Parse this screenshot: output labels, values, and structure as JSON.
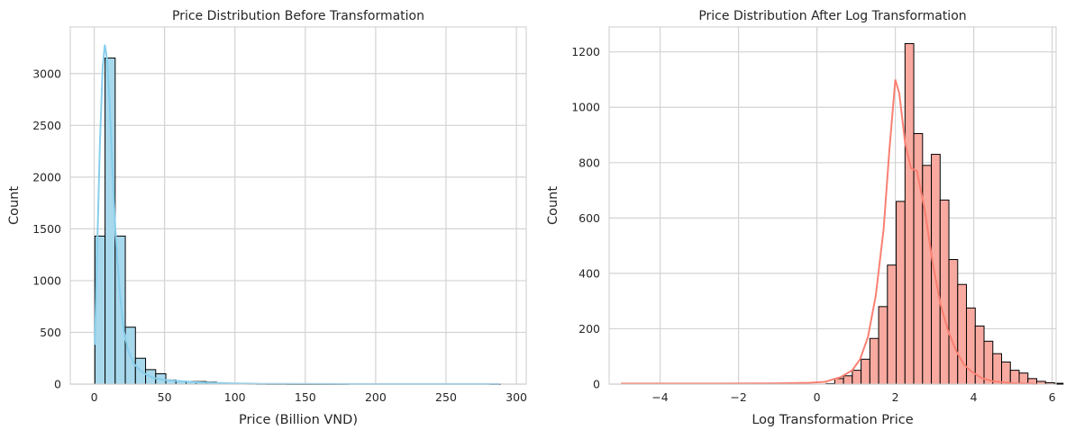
{
  "colors": {
    "left_fill": "#a8d8ec",
    "left_kde": "#87ceeb",
    "right_fill": "#f9aaa0",
    "right_kde": "#fa8072",
    "edge": "#000000",
    "grid": "#d3d3d3"
  },
  "chart_data": [
    {
      "type": "histogram",
      "title": "Price Distribution Before Transformation",
      "xlabel": "Price (Billion VND)",
      "ylabel": "Count",
      "xlim": [
        -17,
        307
      ],
      "ylim": [
        0,
        3450
      ],
      "xticks": [
        0,
        50,
        100,
        150,
        200,
        250,
        300
      ],
      "xtick_labels": [
        "0",
        "50",
        "100",
        "150",
        "200",
        "250",
        "300"
      ],
      "yticks": [
        0,
        500,
        1000,
        1500,
        2000,
        2500,
        3000
      ],
      "ytick_labels": [
        "0",
        "500",
        "1000",
        "1500",
        "2000",
        "2500",
        "3000"
      ],
      "grid": true,
      "kde": true,
      "bins": {
        "start": 0.5,
        "width": 7.2,
        "counts": [
          1430,
          3150,
          1430,
          550,
          250,
          140,
          100,
          40,
          30,
          25,
          25,
          20,
          10,
          8,
          6,
          4,
          3,
          2,
          2,
          1,
          1,
          1,
          1,
          1,
          1,
          0,
          0,
          0,
          0,
          0,
          0,
          0,
          0,
          0,
          0,
          0,
          0,
          0,
          0,
          1
        ]
      },
      "kde_points": [
        [
          0.5,
          380
        ],
        [
          2,
          1250
        ],
        [
          4,
          2300
        ],
        [
          6,
          3050
        ],
        [
          7.5,
          3280
        ],
        [
          9,
          3150
        ],
        [
          11,
          2700
        ],
        [
          13,
          2050
        ],
        [
          15,
          1500
        ],
        [
          18,
          900
        ],
        [
          21,
          520
        ],
        [
          24,
          330
        ],
        [
          28,
          200
        ],
        [
          32,
          140
        ],
        [
          36,
          100
        ],
        [
          42,
          60
        ],
        [
          50,
          40
        ],
        [
          60,
          30
        ],
        [
          70,
          20
        ],
        [
          80,
          14
        ],
        [
          90,
          10
        ],
        [
          100,
          6
        ],
        [
          120,
          3
        ],
        [
          150,
          2
        ],
        [
          200,
          1
        ],
        [
          250,
          1
        ],
        [
          288,
          1
        ]
      ]
    },
    {
      "type": "histogram",
      "title": "Price Distribution After Log Transformation",
      "xlabel": "Log Transformation Price",
      "ylabel": "Count",
      "xlim": [
        -5.3,
        6.1
      ],
      "ylim": [
        0,
        1290
      ],
      "xticks": [
        -4,
        -2,
        0,
        2,
        4,
        6
      ],
      "xtick_labels": [
        "−4",
        "−2",
        "0",
        "2",
        "4",
        "6"
      ],
      "yticks": [
        0,
        200,
        400,
        600,
        800,
        1000,
        1200
      ],
      "ytick_labels": [
        "0",
        "200",
        "400",
        "600",
        "800",
        "1000",
        "1200"
      ],
      "grid": true,
      "kde": true,
      "bins": {
        "start": 0.23,
        "width": 0.224,
        "counts": [
          2,
          20,
          30,
          50,
          90,
          165,
          280,
          430,
          660,
          1230,
          905,
          790,
          830,
          665,
          450,
          360,
          275,
          210,
          155,
          110,
          80,
          50,
          40,
          20,
          10,
          5,
          3
        ]
      },
      "kde_points": [
        [
          -5.0,
          2
        ],
        [
          -4.0,
          2
        ],
        [
          -2.5,
          2
        ],
        [
          -1.0,
          3
        ],
        [
          -0.2,
          5
        ],
        [
          0.2,
          8
        ],
        [
          0.6,
          25
        ],
        [
          0.9,
          50
        ],
        [
          1.1,
          90
        ],
        [
          1.3,
          170
        ],
        [
          1.5,
          320
        ],
        [
          1.7,
          560
        ],
        [
          1.85,
          850
        ],
        [
          2.0,
          1100
        ],
        [
          2.1,
          1050
        ],
        [
          2.25,
          870
        ],
        [
          2.4,
          780
        ],
        [
          2.55,
          770
        ],
        [
          2.75,
          630
        ],
        [
          2.95,
          440
        ],
        [
          3.15,
          290
        ],
        [
          3.35,
          190
        ],
        [
          3.55,
          120
        ],
        [
          3.75,
          70
        ],
        [
          3.95,
          45
        ],
        [
          4.2,
          22
        ],
        [
          4.5,
          10
        ],
        [
          5.0,
          3
        ],
        [
          5.6,
          1
        ]
      ]
    }
  ]
}
